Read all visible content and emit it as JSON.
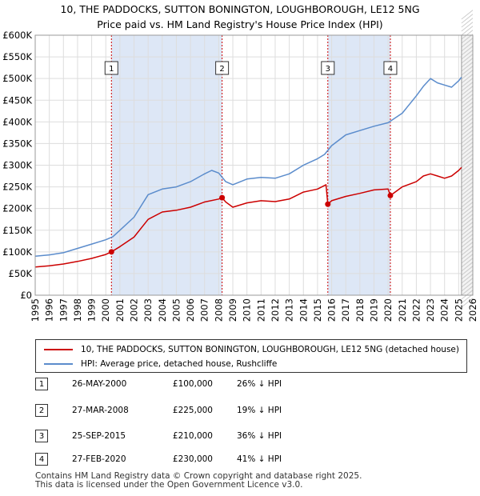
{
  "title_line1": "10, THE PADDOCKS, SUTTON BONINGTON, LOUGHBOROUGH, LE12 5NG",
  "title_line2": "Price paid vs. HM Land Registry's House Price Index (HPI)",
  "legend": {
    "property_label": "10, THE PADDOCKS, SUTTON BONINGTON, LOUGHBOROUGH, LE12 5NG (detached house)",
    "hpi_label": "HPI: Average price, detached house, Rushcliffe"
  },
  "colors": {
    "property": "#cc0000",
    "hpi": "#5b8ccc",
    "band": "#dde7f6",
    "grid": "#dddddd"
  },
  "sales": [
    {
      "num": "1",
      "date": "26-MAY-2000",
      "price": "£100,000",
      "pct": "26% ↓ HPI"
    },
    {
      "num": "2",
      "date": "27-MAR-2008",
      "price": "£225,000",
      "pct": "19% ↓ HPI"
    },
    {
      "num": "3",
      "date": "25-SEP-2015",
      "price": "£210,000",
      "pct": "36% ↓ HPI"
    },
    {
      "num": "4",
      "date": "27-FEB-2020",
      "price": "£230,000",
      "pct": "41% ↓ HPI"
    }
  ],
  "footer_line1": "Contains HM Land Registry data © Crown copyright and database right 2025.",
  "footer_line2": "This data is licensed under the Open Government Licence v3.0.",
  "chart_data": {
    "type": "line",
    "xlim": [
      1995,
      2026
    ],
    "ylim": [
      0,
      600000
    ],
    "y_ticks": [
      0,
      50000,
      100000,
      150000,
      200000,
      250000,
      300000,
      350000,
      400000,
      450000,
      500000,
      550000,
      600000
    ],
    "y_tick_labels": [
      "£0",
      "£50K",
      "£100K",
      "£150K",
      "£200K",
      "£250K",
      "£300K",
      "£350K",
      "£400K",
      "£450K",
      "£500K",
      "£550K",
      "£600K"
    ],
    "x_ticks": [
      1995,
      1996,
      1997,
      1998,
      1999,
      2000,
      2001,
      2002,
      2003,
      2004,
      2005,
      2006,
      2007,
      2008,
      2009,
      2010,
      2011,
      2012,
      2013,
      2014,
      2015,
      2016,
      2017,
      2018,
      2019,
      2020,
      2021,
      2022,
      2023,
      2024,
      2025,
      2026
    ],
    "x_tick_labels": [
      "1995",
      "1996",
      "1997",
      "1998",
      "1999",
      "2000",
      "2001",
      "2002",
      "2003",
      "2004",
      "2005",
      "2006",
      "2007",
      "2008",
      "2009",
      "2010",
      "2011",
      "2012",
      "2013",
      "2014",
      "2015",
      "2016",
      "2017",
      "2018",
      "2019",
      "2020",
      "2021",
      "2022",
      "2023",
      "2024",
      "2025",
      "2026"
    ],
    "shaded_periods": [
      [
        2000.4,
        2008.24
      ],
      [
        2015.73,
        2020.16
      ]
    ],
    "projection_start": 2025.2,
    "markers": [
      {
        "label": "1",
        "x": 2000.4,
        "value": 100000
      },
      {
        "label": "2",
        "x": 2008.24,
        "value": 225000
      },
      {
        "label": "3",
        "x": 2015.73,
        "value": 210000
      },
      {
        "label": "4",
        "x": 2020.16,
        "value": 230000
      }
    ],
    "series": [
      {
        "name": "HPI: Average price, detached house, Rushcliffe",
        "color": "#5b8ccc",
        "x": [
          1995,
          1996,
          1997,
          1998,
          1999,
          2000,
          2000.5,
          2001,
          2002,
          2003,
          2004,
          2005,
          2006,
          2007,
          2007.5,
          2008,
          2008.5,
          2009,
          2010,
          2011,
          2012,
          2013,
          2014,
          2015,
          2015.5,
          2016,
          2017,
          2018,
          2019,
          2020,
          2021,
          2021.5,
          2022,
          2022.5,
          2023,
          2023.5,
          2024,
          2024.5,
          2025,
          2025.2
        ],
        "values": [
          90000,
          93000,
          98000,
          108000,
          118000,
          128000,
          135000,
          150000,
          180000,
          232000,
          245000,
          250000,
          262000,
          280000,
          288000,
          282000,
          262000,
          255000,
          268000,
          272000,
          270000,
          280000,
          300000,
          315000,
          325000,
          345000,
          370000,
          380000,
          390000,
          398000,
          420000,
          440000,
          460000,
          482000,
          500000,
          490000,
          485000,
          480000,
          495000,
          503000
        ]
      },
      {
        "name": "10, THE PADDOCKS, SUTTON BONINGTON, LOUGHBOROUGH, LE12 5NG (detached house)",
        "color": "#cc0000",
        "x": [
          1995,
          1996,
          1997,
          1998,
          1999,
          2000,
          2000.4,
          2001,
          2002,
          2003,
          2004,
          2005,
          2006,
          2007,
          2008,
          2008.24,
          2008.5,
          2009,
          2010,
          2011,
          2012,
          2013,
          2014,
          2015,
          2015.6,
          2015.73,
          2016,
          2017,
          2018,
          2019,
          2020,
          2020.16,
          2021,
          2022,
          2022.5,
          2023,
          2023.5,
          2024,
          2024.5,
          2025,
          2025.2
        ],
        "values": [
          65000,
          68000,
          72000,
          78000,
          85000,
          94000,
          100000,
          112000,
          134000,
          175000,
          192000,
          196000,
          203000,
          215000,
          222000,
          225000,
          215000,
          203000,
          213000,
          218000,
          216000,
          222000,
          238000,
          245000,
          255000,
          210000,
          218000,
          228000,
          235000,
          243000,
          245000,
          230000,
          250000,
          262000,
          275000,
          280000,
          275000,
          270000,
          275000,
          288000,
          295000
        ]
      }
    ]
  }
}
